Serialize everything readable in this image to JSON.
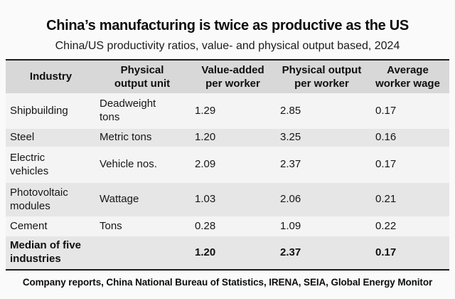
{
  "title": "China’s manufacturing is twice as productive as the US",
  "subtitle": "China/US productivity ratios, value- and physical output based, 2024",
  "table": {
    "headers": [
      [
        "Industry"
      ],
      [
        "Physical",
        "output unit"
      ],
      [
        "Value-added",
        "per worker"
      ],
      [
        "Physical output",
        "per worker"
      ],
      [
        "Average",
        "worker wage"
      ]
    ],
    "rows": [
      {
        "cells": [
          "Shipbuilding",
          [
            "Deadweight",
            "tons"
          ],
          "1.29",
          "2.85",
          "0.17"
        ]
      },
      {
        "cells": [
          "Steel",
          "Metric tons",
          "1.20",
          "3.25",
          "0.16"
        ]
      },
      {
        "cells": [
          [
            "Electric",
            "vehicles"
          ],
          "Vehicle nos.",
          "2.09",
          "2.37",
          "0.17"
        ]
      },
      {
        "cells": [
          [
            "Photovoltaic",
            "modules"
          ],
          "Wattage",
          "1.03",
          "2.06",
          "0.21"
        ]
      },
      {
        "cells": [
          "Cement",
          "Tons",
          "0.28",
          "1.09",
          "0.22"
        ]
      },
      {
        "cells": [
          [
            "Median of five",
            "industries"
          ],
          "",
          "1.20",
          "2.37",
          "0.17"
        ]
      }
    ]
  },
  "footer": "Company reports, China National Bureau of Statistics, IRENA, SEIA, Global Energy Monitor",
  "colors": {
    "rule": "#1a1a1a",
    "header_bg": "#d8d8d8",
    "row_gray": "#e6e6e6",
    "row_light": "#f4f4f4",
    "page_bg": "#fafafa"
  },
  "chart_data": {
    "type": "table",
    "title": "China’s manufacturing is twice as productive as the US",
    "subtitle": "China/US productivity ratios, value- and physical output based, 2024",
    "columns": [
      "Industry",
      "Physical output unit",
      "Value-added per worker",
      "Physical output per worker",
      "Average worker wage"
    ],
    "rows": [
      [
        "Shipbuilding",
        "Deadweight tons",
        1.29,
        2.85,
        0.17
      ],
      [
        "Steel",
        "Metric tons",
        1.2,
        3.25,
        0.16
      ],
      [
        "Electric vehicles",
        "Vehicle nos.",
        2.09,
        2.37,
        0.17
      ],
      [
        "Photovoltaic modules",
        "Wattage",
        1.03,
        2.06,
        0.21
      ],
      [
        "Cement",
        "Tons",
        0.28,
        1.09,
        0.22
      ],
      [
        "Median of five industries",
        null,
        1.2,
        2.37,
        0.17
      ]
    ],
    "source": "Company reports, China National Bureau of Statistics, IRENA, SEIA, Global Energy Monitor"
  }
}
